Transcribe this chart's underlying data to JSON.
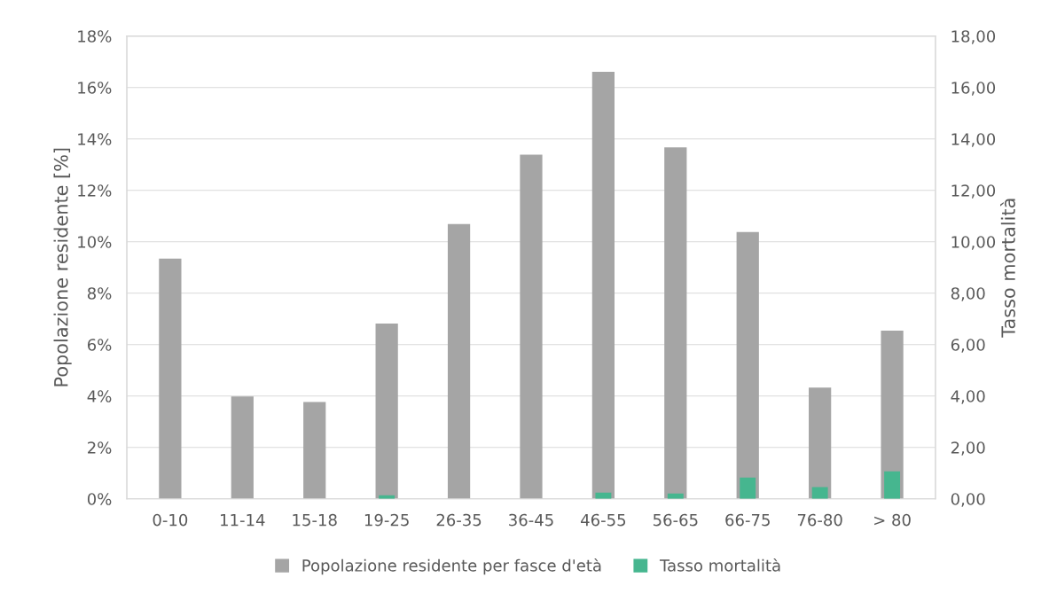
{
  "chart_data": {
    "type": "bar",
    "ylabel": "Popolazione residente [%]",
    "y2label": "Tasso mortalità",
    "categories": [
      "0-10",
      "11-14",
      "15-18",
      "19-25",
      "26-35",
      "36-45",
      "46-55",
      "56-65",
      "66-75",
      "76-80",
      "> 80"
    ],
    "series": [
      {
        "name": "Popolazione residente per fasce d'età",
        "color": "#a5a5a5",
        "values": [
          9.34,
          3.98,
          3.77,
          6.82,
          10.69,
          13.39,
          16.61,
          13.67,
          10.38,
          4.33,
          6.54
        ]
      },
      {
        "name": "Tasso mortalità",
        "color": "#46b68f",
        "axis": "y2",
        "values": [
          0,
          0,
          0,
          0.14,
          null,
          null,
          0.24,
          0.21,
          0.83,
          0.46,
          1.07
        ]
      }
    ],
    "ylim": [
      0,
      18
    ],
    "yticks": [
      {
        "value": 0,
        "label": "0%"
      },
      {
        "value": 2,
        "label": "2%"
      },
      {
        "value": 4,
        "label": "4%"
      },
      {
        "value": 6,
        "label": "6%"
      },
      {
        "value": 8,
        "label": "8%"
      },
      {
        "value": 10,
        "label": "10%"
      },
      {
        "value": 12,
        "label": "12%"
      },
      {
        "value": 14,
        "label": "14%"
      },
      {
        "value": 16,
        "label": "16%"
      },
      {
        "value": 18,
        "label": "18%"
      }
    ],
    "y2lim": [
      0,
      18
    ],
    "y2ticks": [
      {
        "value": 0,
        "label": "0,00"
      },
      {
        "value": 2,
        "label": "2,00"
      },
      {
        "value": 4,
        "label": "4,00"
      },
      {
        "value": 6,
        "label": "6,00"
      },
      {
        "value": 8,
        "label": "8,00"
      },
      {
        "value": 10,
        "label": "10,00"
      },
      {
        "value": 12,
        "label": "12,00"
      },
      {
        "value": 14,
        "label": "14,00"
      },
      {
        "value": 16,
        "label": "16,00"
      },
      {
        "value": 18,
        "label": "18,00"
      }
    ],
    "grid": "y",
    "legend": "bottom"
  }
}
